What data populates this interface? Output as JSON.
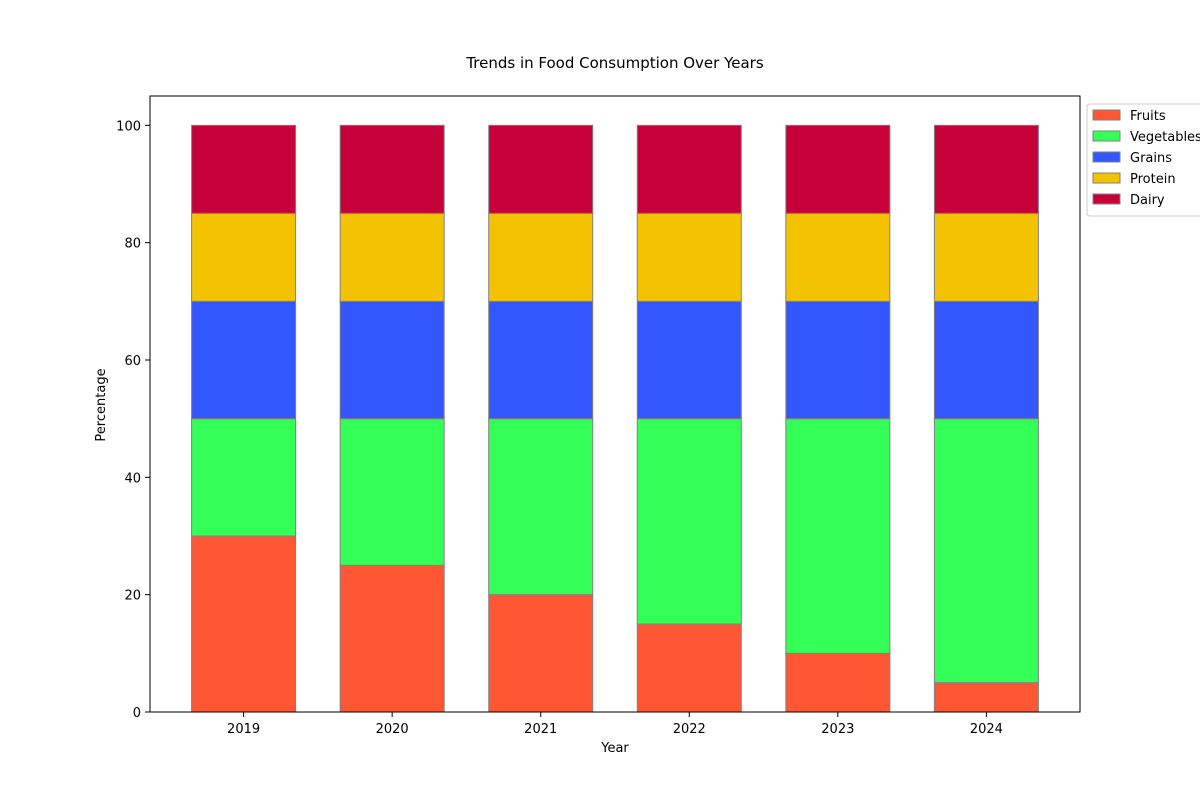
{
  "chart_data": {
    "type": "bar",
    "stacked": true,
    "title": "Trends in Food Consumption Over Years",
    "xlabel": "Year",
    "ylabel": "Percentage",
    "categories": [
      "2019",
      "2020",
      "2021",
      "2022",
      "2023",
      "2024"
    ],
    "ylim": [
      0,
      105
    ],
    "yticks": [
      0,
      20,
      40,
      60,
      80,
      100
    ],
    "grid": false,
    "legend_placement": "outside-top-right",
    "bar_edge_color": "#808080",
    "series": [
      {
        "name": "Fruits",
        "color": "#ff5733",
        "values": [
          30,
          25,
          20,
          15,
          10,
          5
        ]
      },
      {
        "name": "Vegetables",
        "color": "#33ff57",
        "values": [
          20,
          25,
          30,
          35,
          40,
          45
        ]
      },
      {
        "name": "Grains",
        "color": "#3357ff",
        "values": [
          20,
          20,
          20,
          20,
          20,
          20
        ]
      },
      {
        "name": "Protein",
        "color": "#f3c200",
        "values": [
          15,
          15,
          15,
          15,
          15,
          15
        ]
      },
      {
        "name": "Dairy",
        "color": "#c70039",
        "values": [
          15,
          15,
          15,
          15,
          15,
          15
        ]
      }
    ]
  }
}
